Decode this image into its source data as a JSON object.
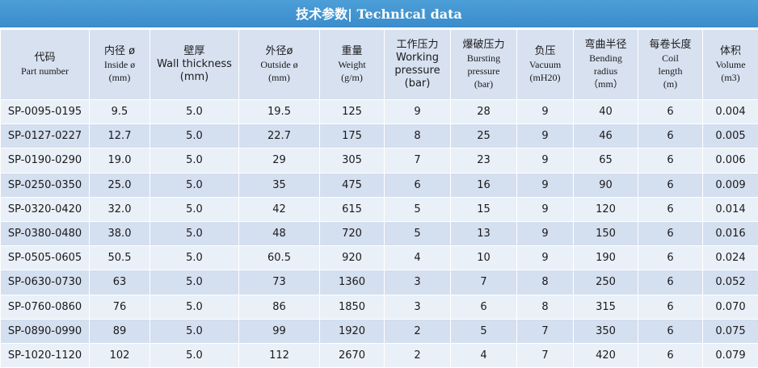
{
  "title": "技术参数| Technical data",
  "headers": [
    {
      "lines": [
        {
          "t": "代码",
          "k": "zh"
        },
        {
          "t": "Part number",
          "k": "en"
        }
      ]
    },
    {
      "lines": [
        {
          "t": "内径 ø",
          "k": "zh"
        },
        {
          "t": "Inside  ø",
          "k": "en"
        },
        {
          "t": "(mm)",
          "k": "en"
        }
      ]
    },
    {
      "lines": [
        {
          "t": "壁厚",
          "k": "zh"
        },
        {
          "t": "Wall thickness",
          "k": "en-sans"
        },
        {
          "t": "(mm)",
          "k": "en-sans"
        }
      ]
    },
    {
      "lines": [
        {
          "t": "外径ø",
          "k": "zh"
        },
        {
          "t": "Outside  ø",
          "k": "en"
        },
        {
          "t": "(mm)",
          "k": "en"
        }
      ]
    },
    {
      "lines": [
        {
          "t": "重量",
          "k": "zh"
        },
        {
          "t": "Weight",
          "k": "en"
        },
        {
          "t": "(g/m)",
          "k": "en"
        }
      ]
    },
    {
      "lines": [
        {
          "t": "工作压力",
          "k": "zh"
        },
        {
          "t": "Working",
          "k": "en-sans"
        },
        {
          "t": "pressure",
          "k": "en-sans"
        },
        {
          "t": "(bar)",
          "k": "en-sans"
        }
      ]
    },
    {
      "lines": [
        {
          "t": "爆破压力",
          "k": "zh"
        },
        {
          "t": "Bursting",
          "k": "en"
        },
        {
          "t": "pressure",
          "k": "en"
        },
        {
          "t": "(bar)",
          "k": "en"
        }
      ]
    },
    {
      "lines": [
        {
          "t": "负压",
          "k": "zh"
        },
        {
          "t": "Vacuum",
          "k": "en"
        },
        {
          "t": "(mH20)",
          "k": "en"
        }
      ]
    },
    {
      "lines": [
        {
          "t": "弯曲半径",
          "k": "zh"
        },
        {
          "t": "Bending",
          "k": "en"
        },
        {
          "t": "radius",
          "k": "en"
        },
        {
          "t": "（mm）",
          "k": "en"
        }
      ]
    },
    {
      "lines": [
        {
          "t": "每卷长度",
          "k": "zh"
        },
        {
          "t": "Coil",
          "k": "en"
        },
        {
          "t": "length",
          "k": "en"
        },
        {
          "t": "(m)",
          "k": "en"
        }
      ]
    },
    {
      "lines": [
        {
          "t": "体积",
          "k": "zh"
        },
        {
          "t": "Volume",
          "k": "en"
        },
        {
          "t": "(m3)",
          "k": "en"
        }
      ]
    }
  ],
  "rows": [
    [
      "SP-0095-0195",
      "9.5",
      "5.0",
      "19.5",
      "125",
      "9",
      "28",
      "9",
      "40",
      "6",
      "0.004"
    ],
    [
      "SP-0127-0227",
      "12.7",
      "5.0",
      "22.7",
      "175",
      "8",
      "25",
      "9",
      "46",
      "6",
      "0.005"
    ],
    [
      "SP-0190-0290",
      "19.0",
      "5.0",
      "29",
      "305",
      "7",
      "23",
      "9",
      "65",
      "6",
      "0.006"
    ],
    [
      "SP-0250-0350",
      "25.0",
      "5.0",
      "35",
      "475",
      "6",
      "16",
      "9",
      "90",
      "6",
      "0.009"
    ],
    [
      "SP-0320-0420",
      "32.0",
      "5.0",
      "42",
      "615",
      "5",
      "15",
      "9",
      "120",
      "6",
      "0.014"
    ],
    [
      "SP-0380-0480",
      "38.0",
      "5.0",
      "48",
      "720",
      "5",
      "13",
      "9",
      "150",
      "6",
      "0.016"
    ],
    [
      "SP-0505-0605",
      "50.5",
      "5.0",
      "60.5",
      "920",
      "4",
      "10",
      "9",
      "190",
      "6",
      "0.024"
    ],
    [
      "SP-0630-0730",
      "63",
      "5.0",
      "73",
      "1360",
      "3",
      "7",
      "8",
      "250",
      "6",
      "0.052"
    ],
    [
      "SP-0760-0860",
      "76",
      "5.0",
      "86",
      "1850",
      "3",
      "6",
      "8",
      "315",
      "6",
      "0.070"
    ],
    [
      "SP-0890-0990",
      "89",
      "5.0",
      "99",
      "1920",
      "2",
      "5",
      "7",
      "350",
      "6",
      "0.075"
    ],
    [
      "SP-1020-1120",
      "102",
      "5.0",
      "112",
      "2670",
      "2",
      "4",
      "7",
      "420",
      "6",
      "0.079"
    ]
  ],
  "colors": {
    "title_bg": "#3a8ccb",
    "header_bg": "#d8e1f0",
    "row_light": "#eaf0f8",
    "row_dark": "#d4dff0"
  }
}
